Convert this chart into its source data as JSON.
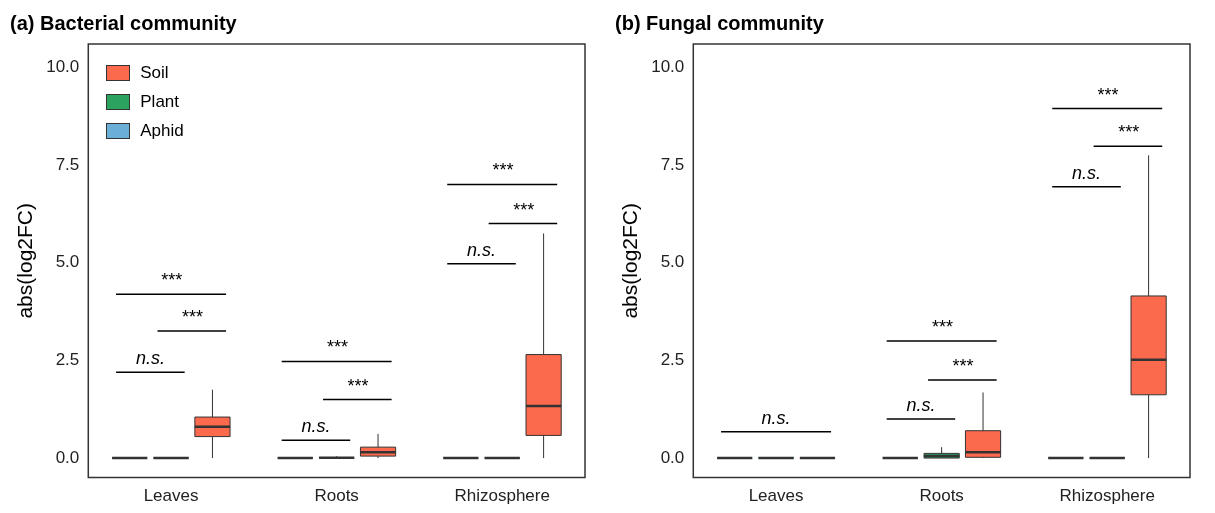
{
  "chart_data": [
    {
      "type": "box",
      "title": "(a) Bacterial community",
      "ylabel": "abs(log2FC)",
      "categories": [
        "Leaves",
        "Roots",
        "Rhizosphere"
      ],
      "ylim": [
        -0.5,
        10.6
      ],
      "yticks": [
        {
          "value": 0,
          "label": "0.0"
        },
        {
          "value": 2.5,
          "label": "2.5"
        },
        {
          "value": 5,
          "label": "5.0"
        },
        {
          "value": 7.5,
          "label": "7.5"
        },
        {
          "value": 10,
          "label": "10.0"
        }
      ],
      "grid": false,
      "legend": "top left",
      "series": [
        {
          "name": "Aphid",
          "color": "#6baed6",
          "boxes": [
            {
              "low": 0,
              "q1": 0,
              "median": 0,
              "q3": 0.02,
              "high": 0.02
            },
            {
              "low": 0,
              "q1": 0,
              "median": 0,
              "q3": 0.02,
              "high": 0.02
            },
            {
              "low": 0,
              "q1": 0,
              "median": 0,
              "q3": 0.02,
              "high": 0.02
            }
          ]
        },
        {
          "name": "Plant",
          "color": "#2ca25f",
          "boxes": [
            {
              "low": 0,
              "q1": 0,
              "median": 0,
              "q3": 0.02,
              "high": 0.02
            },
            {
              "low": 0,
              "q1": 0,
              "median": 0.01,
              "q3": 0.03,
              "high": 0.05
            },
            {
              "low": 0,
              "q1": 0,
              "median": 0,
              "q3": 0.02,
              "high": 0.02
            }
          ]
        },
        {
          "name": "Soil",
          "color": "#fc6a4d",
          "boxes": [
            {
              "low": 0,
              "q1": 0.55,
              "median": 0.8,
              "q3": 1.05,
              "high": 1.75
            },
            {
              "low": 0,
              "q1": 0.05,
              "median": 0.15,
              "q3": 0.28,
              "high": 0.62
            },
            {
              "low": 0,
              "q1": 0.58,
              "median": 1.33,
              "q3": 2.65,
              "high": 5.75
            }
          ]
        }
      ],
      "annotations": [
        "n.s.",
        "***",
        "***",
        "n.s.",
        "***",
        "***",
        "n.s.",
        "***",
        "***"
      ]
    },
    {
      "type": "box",
      "title": "(b) Fungal community",
      "ylabel": "abs(log2FC)",
      "categories": [
        "Leaves",
        "Roots",
        "Rhizosphere"
      ],
      "ylim": [
        -0.5,
        10.6
      ],
      "yticks": [
        {
          "value": 0,
          "label": "0.0"
        },
        {
          "value": 2.5,
          "label": "2.5"
        },
        {
          "value": 5,
          "label": "5.0"
        },
        {
          "value": 7.5,
          "label": "7.5"
        },
        {
          "value": 10,
          "label": "10.0"
        }
      ],
      "grid": false,
      "series": [
        {
          "color": "#6baed6",
          "boxes": [
            {
              "low": 0,
              "q1": 0,
              "median": 0,
              "q3": 0.02,
              "high": 0.02
            },
            {
              "low": 0,
              "q1": 0,
              "median": 0,
              "q3": 0.02,
              "high": 0.02
            },
            {
              "low": 0,
              "q1": 0,
              "median": 0,
              "q3": 0.02,
              "high": 0.02
            }
          ]
        },
        {
          "color": "#2ca25f",
          "boxes": [
            {
              "low": 0,
              "q1": 0,
              "median": 0,
              "q3": 0.02,
              "high": 0.02
            },
            {
              "low": 0,
              "q1": 0,
              "median": 0.05,
              "q3": 0.12,
              "high": 0.28
            },
            {
              "low": 0,
              "q1": 0,
              "median": 0,
              "q3": 0.02,
              "high": 0.02
            }
          ]
        },
        {
          "color": "#fc6a4d",
          "boxes": [
            {
              "low": 0,
              "q1": 0,
              "median": 0,
              "q3": 0.02,
              "high": 0.02
            },
            {
              "low": 0,
              "q1": 0.02,
              "median": 0.15,
              "q3": 0.7,
              "high": 1.68
            },
            {
              "low": 0,
              "q1": 1.62,
              "median": 2.52,
              "q3": 4.15,
              "high": 7.75
            }
          ]
        }
      ],
      "annotations": [
        "n.s.",
        "n.s.",
        "***",
        "***",
        "n.s.",
        "***",
        "***"
      ]
    }
  ]
}
